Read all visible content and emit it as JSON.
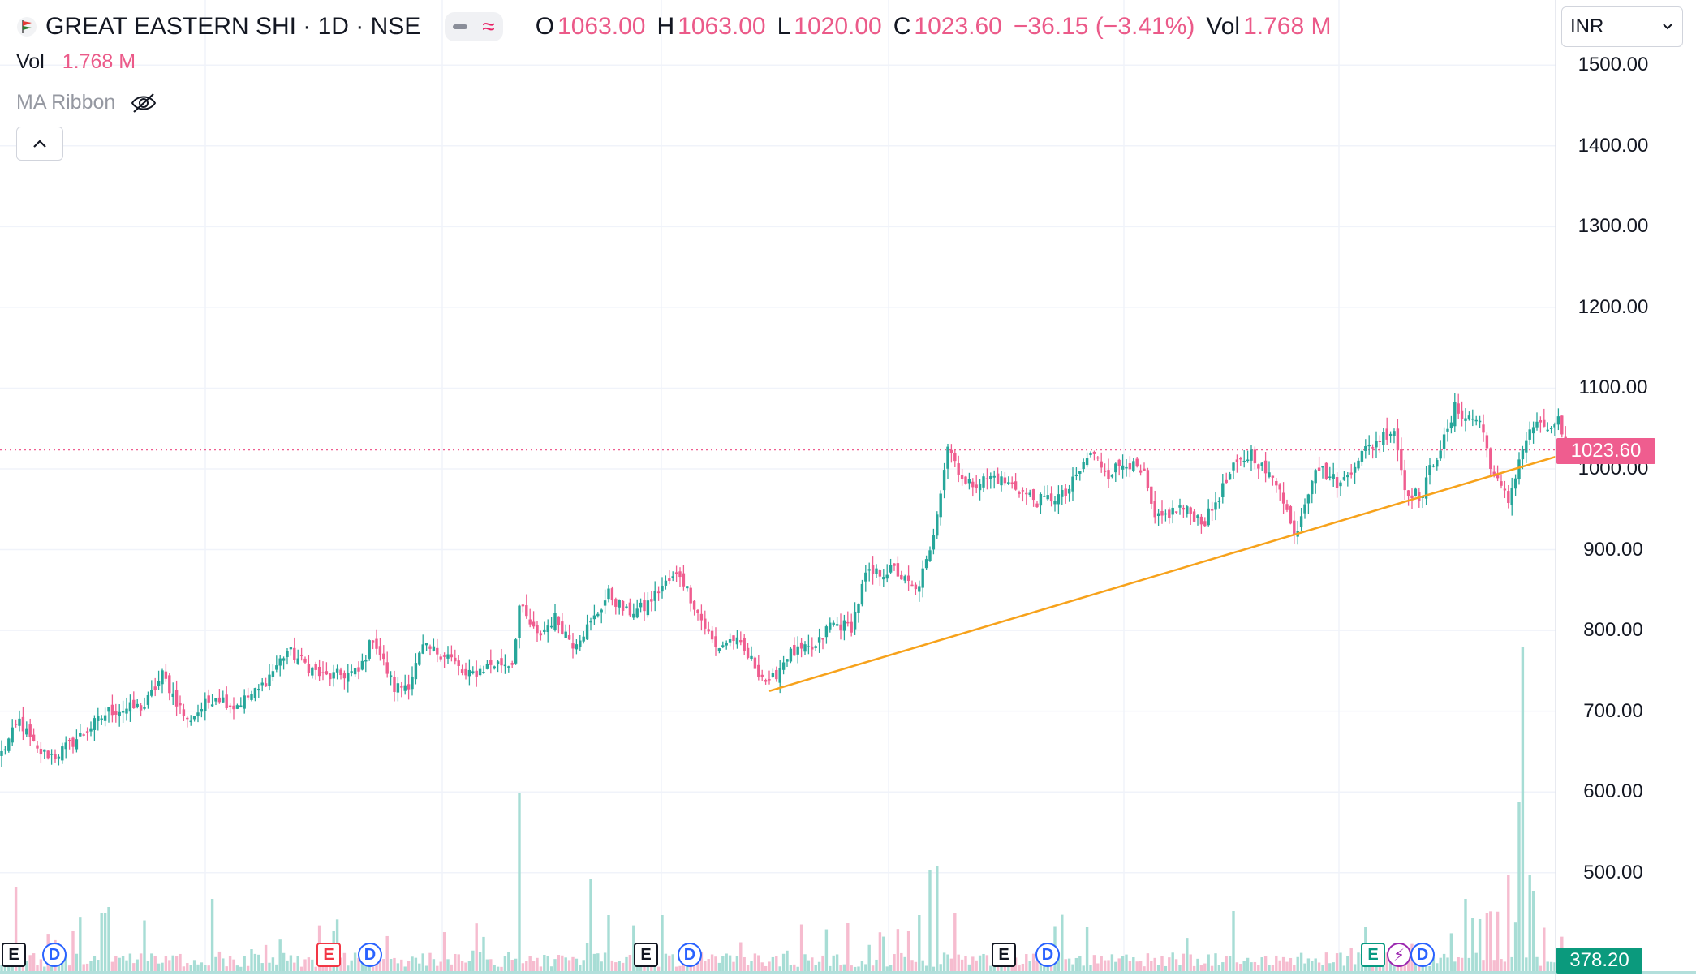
{
  "header": {
    "symbol": "GREAT EASTERN SHI · 1D · NSE",
    "ohlc": [
      {
        "label": "O",
        "value": "1063.00"
      },
      {
        "label": "H",
        "value": "1063.00"
      },
      {
        "label": "L",
        "value": "1020.00"
      },
      {
        "label": "C",
        "value": "1023.60"
      }
    ],
    "change": "−36.15 (−3.41%)",
    "vol_label": "Vol",
    "vol_value": "1.768 M"
  },
  "indicators": {
    "vol_label": "Vol",
    "vol_value": "1.768 M",
    "ma_ribbon_label": "MA Ribbon"
  },
  "currency": "INR",
  "colors": {
    "up": "#26a69a",
    "down": "#ef5d8f",
    "trendline": "#f7a21b",
    "price_line": "#ef5d8f",
    "volume_tag": "#0b9a7d"
  },
  "icons": {
    "logo": "flag-logo-icon",
    "visibility": "eye-off-icon",
    "collapse": "chevron-up-icon",
    "currency_dropdown": "chevron-down-icon"
  },
  "price_axis": {
    "ticks": [
      "1500.00",
      "1400.00",
      "1300.00",
      "1200.00",
      "1100.00",
      "1000.00",
      "900.00",
      "800.00",
      "700.00",
      "600.00",
      "500.00"
    ],
    "last_price_label": "1023.60",
    "volume_label": "378.20"
  },
  "markers": [
    {
      "type": "E",
      "style": "e"
    },
    {
      "type": "D",
      "style": "d"
    },
    {
      "type": "E",
      "style": "e-red"
    },
    {
      "type": "D",
      "style": "d"
    },
    {
      "type": "E",
      "style": "e"
    },
    {
      "type": "D",
      "style": "d"
    },
    {
      "type": "E",
      "style": "e"
    },
    {
      "type": "D",
      "style": "d"
    },
    {
      "type": "E",
      "style": "e-green"
    },
    {
      "type": "⚡",
      "style": "s"
    },
    {
      "type": "D",
      "style": "d"
    }
  ],
  "chart_data": {
    "type": "candlestick",
    "title": "GREAT EASTERN SHI · 1D · NSE",
    "ylim": [
      420,
      1540
    ],
    "grid": true,
    "last_price": 1023.6,
    "trendline": {
      "from": {
        "bar": 215,
        "price": 725
      },
      "to": {
        "bar": 480,
        "price": 1015
      }
    },
    "anchors": [
      [
        0,
        648
      ],
      [
        5,
        688
      ],
      [
        10,
        650
      ],
      [
        15,
        645
      ],
      [
        20,
        662
      ],
      [
        30,
        700
      ],
      [
        40,
        706
      ],
      [
        45,
        745
      ],
      [
        52,
        688
      ],
      [
        60,
        720
      ],
      [
        65,
        706
      ],
      [
        72,
        726
      ],
      [
        80,
        775
      ],
      [
        90,
        742
      ],
      [
        100,
        748
      ],
      [
        104,
        792
      ],
      [
        110,
        728
      ],
      [
        114,
        735
      ],
      [
        118,
        778
      ],
      [
        125,
        770
      ],
      [
        130,
        742
      ],
      [
        137,
        758
      ],
      [
        143,
        760
      ],
      [
        145,
        830
      ],
      [
        150,
        792
      ],
      [
        155,
        816
      ],
      [
        160,
        784
      ],
      [
        165,
        808
      ],
      [
        170,
        845
      ],
      [
        175,
        822
      ],
      [
        180,
        828
      ],
      [
        185,
        855
      ],
      [
        190,
        870
      ],
      [
        195,
        822
      ],
      [
        200,
        778
      ],
      [
        205,
        790
      ],
      [
        210,
        762
      ],
      [
        215,
        732
      ],
      [
        220,
        770
      ],
      [
        228,
        778
      ],
      [
        232,
        808
      ],
      [
        238,
        805
      ],
      [
        242,
        868
      ],
      [
        250,
        875
      ],
      [
        256,
        848
      ],
      [
        260,
        895
      ],
      [
        265,
        1030
      ],
      [
        270,
        980
      ],
      [
        278,
        990
      ],
      [
        285,
        975
      ],
      [
        290,
        960
      ],
      [
        298,
        968
      ],
      [
        305,
        1020
      ],
      [
        310,
        995
      ],
      [
        315,
        1010
      ],
      [
        320,
        990
      ],
      [
        323,
        935
      ],
      [
        330,
        952
      ],
      [
        337,
        935
      ],
      [
        345,
        1000
      ],
      [
        350,
        1020
      ],
      [
        355,
        990
      ],
      [
        358,
        980
      ],
      [
        362,
        915
      ],
      [
        368,
        1005
      ],
      [
        375,
        980
      ],
      [
        380,
        1015
      ],
      [
        385,
        1035
      ],
      [
        390,
        1050
      ],
      [
        393,
        975
      ],
      [
        398,
        965
      ],
      [
        400,
        1000
      ],
      [
        405,
        1045
      ],
      [
        407,
        1075
      ],
      [
        410,
        1065
      ],
      [
        414,
        1060
      ],
      [
        418,
        990
      ],
      [
        422,
        960
      ],
      [
        426,
        1028
      ],
      [
        430,
        1060
      ],
      [
        432,
        1045
      ],
      [
        436,
        1060
      ],
      [
        438,
        1023.6
      ]
    ]
  }
}
